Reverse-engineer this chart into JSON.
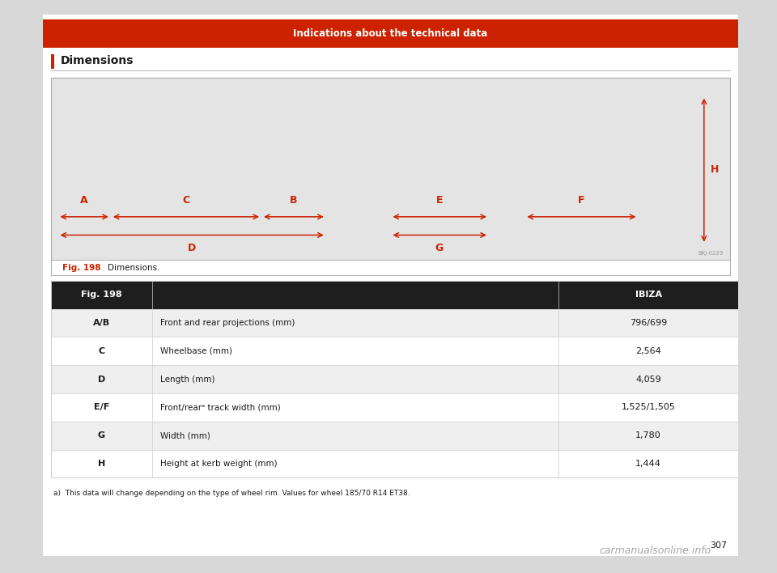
{
  "page_bg": "#d8d8d8",
  "content_bg": "#ffffff",
  "header_bar_color": "#cc2200",
  "header_text": "Indications about the technical data",
  "header_text_color": "#ffffff",
  "section_title": "Dimensions",
  "section_title_color": "#1a1a1a",
  "fig_caption_bold": "Fig. 198",
  "fig_caption_bold_color": "#cc2200",
  "fig_caption_text": "Dimensions.",
  "fig_caption_text_color": "#1a1a1a",
  "table_header_bg": "#1e1e1e",
  "table_header_text_color": "#ffffff",
  "table_row_bg_even": "#efefef",
  "table_row_bg_odd": "#ffffff",
  "table_border_color": "#cccccc",
  "table_col1_header": "Fig. 198",
  "table_col2_header": "",
  "table_col3_header": "IBIZA",
  "table_rows": [
    [
      "A/B",
      "Front and rear projections (mm)",
      "796/699"
    ],
    [
      "C",
      "Wheelbase (mm)",
      "2,564"
    ],
    [
      "D",
      "Length (mm)",
      "4,059"
    ],
    [
      "E/F",
      "Front/rearᵃ track width (mm)",
      "1,525/1,505"
    ],
    [
      "G",
      "Width (mm)",
      "1,780"
    ],
    [
      "H",
      "Height at kerb weight (mm)",
      "1,444"
    ]
  ],
  "footnote": "a)  This data will change depending on the type of wheel rim. Values for wheel 185/70 R14 ET38.",
  "page_number": "307",
  "diagram_bg": "#e4e4e4",
  "diagram_border": "#aaaaaa",
  "arrow_color": "#cc2200",
  "watermark_code": "BKJ-0229"
}
